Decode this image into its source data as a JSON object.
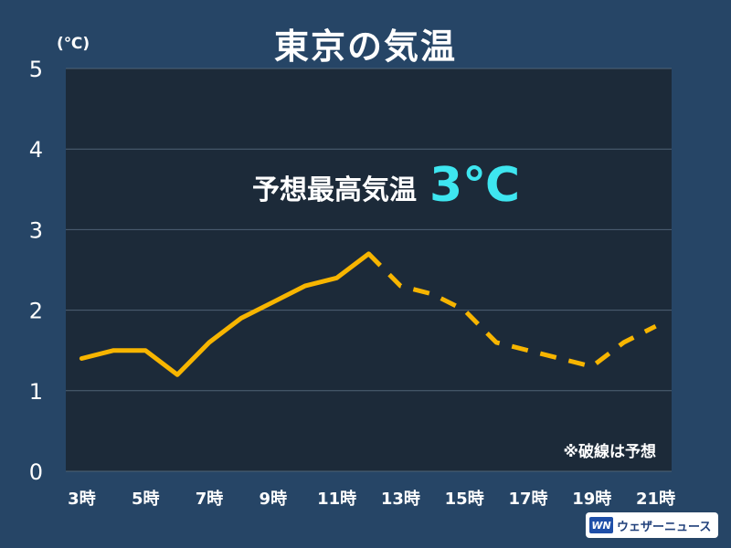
{
  "header": {
    "title": "東京の気温",
    "unit": "(℃)"
  },
  "brand": {
    "logo_text": "WN",
    "name": "ウェザーニュース"
  },
  "chart_data": {
    "type": "line",
    "title": "東京の気温",
    "ylabel": "(℃)",
    "xlabel": "",
    "ylim": [
      0,
      5
    ],
    "y_ticks": [
      "0",
      "1",
      "2",
      "3",
      "4",
      "5"
    ],
    "x_tick_labels": [
      "3時",
      "5時",
      "7時",
      "9時",
      "11時",
      "13時",
      "15時",
      "17時",
      "19時",
      "21時"
    ],
    "x_tick_hours": [
      3,
      5,
      7,
      9,
      11,
      13,
      15,
      17,
      19,
      21
    ],
    "x_range": [
      2.5,
      21.5
    ],
    "grid": true,
    "series": [
      {
        "style": "solid",
        "color": "#f7b500",
        "points": [
          {
            "x": 3,
            "y": 1.4
          },
          {
            "x": 4,
            "y": 1.5
          },
          {
            "x": 5,
            "y": 1.5
          },
          {
            "x": 6,
            "y": 1.2
          },
          {
            "x": 7,
            "y": 1.6
          },
          {
            "x": 8,
            "y": 1.9
          },
          {
            "x": 9,
            "y": 2.1
          },
          {
            "x": 10,
            "y": 2.3
          },
          {
            "x": 11,
            "y": 2.4
          },
          {
            "x": 12,
            "y": 2.7
          }
        ]
      },
      {
        "style": "dashed",
        "color": "#f7b500",
        "points": [
          {
            "x": 12,
            "y": 2.7
          },
          {
            "x": 13,
            "y": 2.3
          },
          {
            "x": 14,
            "y": 2.2
          },
          {
            "x": 15,
            "y": 2.0
          },
          {
            "x": 16,
            "y": 1.6
          },
          {
            "x": 17,
            "y": 1.5
          },
          {
            "x": 18,
            "y": 1.4
          },
          {
            "x": 19,
            "y": 1.3
          },
          {
            "x": 20,
            "y": 1.6
          },
          {
            "x": 21,
            "y": 1.8
          }
        ]
      }
    ],
    "annotations": {
      "forecast_label": "予想最高気温",
      "forecast_value": "3℃",
      "forecast_value_color": "#3ee6f0",
      "note": "※破線は予想"
    },
    "colors": {
      "background": "#264566",
      "plot_background": "#1c2a39",
      "line": "#f7b500",
      "grid": "#4e6275"
    }
  }
}
